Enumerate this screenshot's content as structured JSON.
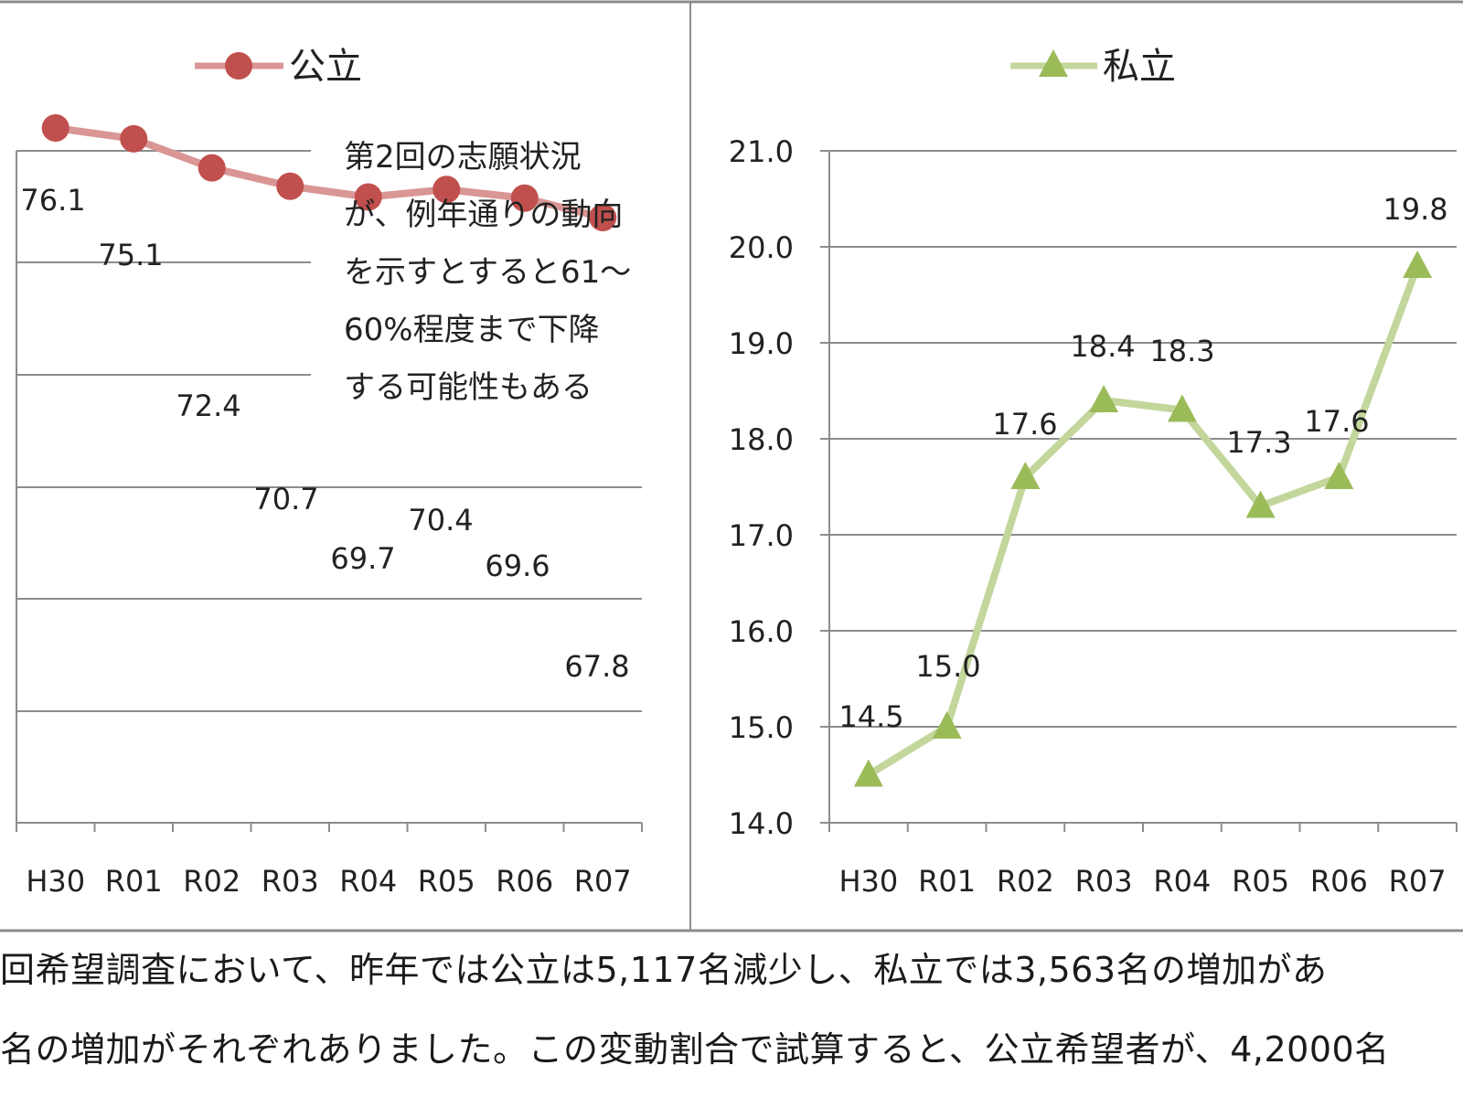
{
  "chart_data": [
    {
      "type": "line",
      "legend": "公立",
      "legend_position": "top",
      "color": "#c0504d",
      "line_color": "#d99694",
      "marker": "circle",
      "categories": [
        "H30",
        "R01",
        "R02",
        "R03",
        "R04",
        "R05",
        "R06",
        "R07"
      ],
      "values": [
        76.1,
        75.1,
        72.4,
        70.7,
        69.7,
        70.4,
        69.6,
        67.8
      ],
      "grid": true,
      "annotation": [
        "第2回の志願状況",
        "が、例年通りの動向",
        "を示すとすると61～",
        "60%程度まで下降",
        "する可能性もある"
      ]
    },
    {
      "type": "line",
      "legend": "私立",
      "legend_position": "top",
      "color": "#9bbb59",
      "line_color": "#c3d69b",
      "marker": "triangle",
      "categories": [
        "H30",
        "R01",
        "R02",
        "R03",
        "R04",
        "R05",
        "R06",
        "R07"
      ],
      "values": [
        14.5,
        15.0,
        17.6,
        18.4,
        18.3,
        17.3,
        17.6,
        19.8
      ],
      "value_labels": [
        "14.5",
        "15.0",
        "17.6",
        "18.4",
        "18.3",
        "17.3",
        "17.6",
        "19.8"
      ],
      "ylim": [
        14.0,
        21.0
      ],
      "yticks": [
        "14.0",
        "15.0",
        "16.0",
        "17.0",
        "18.0",
        "19.0",
        "20.0",
        "21.0"
      ],
      "grid": true
    }
  ],
  "caption": {
    "line1": "回希望調査において、昨年では公立は5,117名減少し、私立では3,563名の増加があ",
    "line2": "名の増加がそれぞれありました。この変動割合で試算すると、公立希望者が、4,2000名"
  }
}
